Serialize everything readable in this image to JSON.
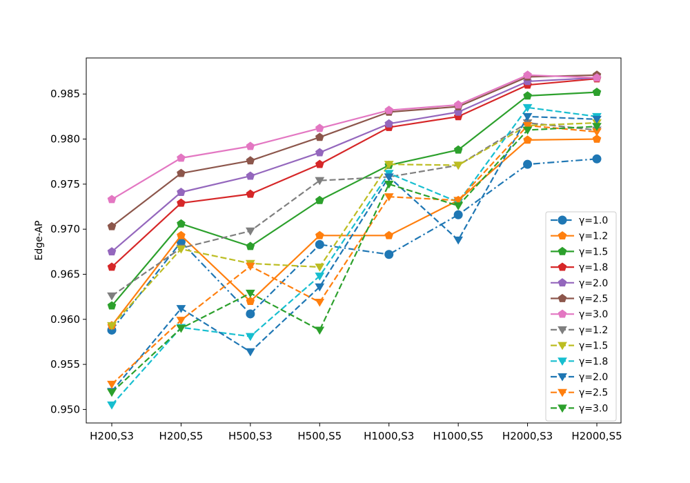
{
  "chart_data": {
    "type": "line",
    "categories": [
      "H200,S3",
      "H200,S5",
      "H500,S3",
      "H500,S5",
      "H1000,S3",
      "H1000,S5",
      "H2000,S3",
      "H2000,S5"
    ],
    "xlabel": "",
    "ylabel": "Edge-AP",
    "ylim": [
      0.9485,
      0.989
    ],
    "yticks": [
      0.95,
      0.955,
      0.96,
      0.965,
      0.97,
      0.975,
      0.98,
      0.985
    ],
    "ytick_labels": [
      "0.950",
      "0.955",
      "0.960",
      "0.965",
      "0.970",
      "0.975",
      "0.980",
      "0.985"
    ],
    "grid": false,
    "legend_position": "lower-right",
    "series": [
      {
        "name": "γ=1.0",
        "color": "#1f77b4",
        "linestyle": "dashdot",
        "marker": "circle",
        "values": [
          0.9588,
          0.9686,
          0.9606,
          0.9683,
          0.9672,
          0.9716,
          0.9772,
          0.9778
        ]
      },
      {
        "name": "γ=1.2",
        "color": "#ff7f0e",
        "linestyle": "solid",
        "marker": "pentagon",
        "values": [
          0.9593,
          0.9693,
          0.962,
          0.9693,
          0.9693,
          0.9732,
          0.9799,
          0.98
        ]
      },
      {
        "name": "γ=1.5",
        "color": "#2ca02c",
        "linestyle": "solid",
        "marker": "pentagon",
        "values": [
          0.9615,
          0.9706,
          0.9681,
          0.9732,
          0.9771,
          0.9788,
          0.9848,
          0.9852
        ]
      },
      {
        "name": "γ=1.8",
        "color": "#d62728",
        "linestyle": "solid",
        "marker": "pentagon",
        "values": [
          0.9658,
          0.9729,
          0.9739,
          0.9772,
          0.9813,
          0.9825,
          0.986,
          0.9867
        ]
      },
      {
        "name": "γ=2.0",
        "color": "#9467bd",
        "linestyle": "solid",
        "marker": "pentagon",
        "values": [
          0.9675,
          0.9741,
          0.9759,
          0.9785,
          0.9817,
          0.983,
          0.9864,
          0.9868
        ]
      },
      {
        "name": "γ=2.5",
        "color": "#8c564b",
        "linestyle": "solid",
        "marker": "pentagon",
        "values": [
          0.9703,
          0.9762,
          0.9776,
          0.9802,
          0.983,
          0.9836,
          0.9869,
          0.9871
        ]
      },
      {
        "name": "γ=3.0",
        "color": "#e377c2",
        "linestyle": "solid",
        "marker": "pentagon",
        "values": [
          0.9733,
          0.9779,
          0.9792,
          0.9812,
          0.9832,
          0.9838,
          0.9871,
          0.9868
        ]
      },
      {
        "name": "γ=1.2",
        "color": "#7f7f7f",
        "linestyle": "dashed",
        "marker": "triangle-down",
        "values": [
          0.9626,
          0.9679,
          0.9698,
          0.9754,
          0.9758,
          0.9771,
          0.9818,
          0.981
        ]
      },
      {
        "name": "γ=1.5",
        "color": "#bcbd22",
        "linestyle": "dashed",
        "marker": "triangle-down",
        "values": [
          0.9593,
          0.9678,
          0.9662,
          0.9658,
          0.9772,
          0.9771,
          0.9815,
          0.9818
        ]
      },
      {
        "name": "γ=1.8",
        "color": "#17becf",
        "linestyle": "dashed",
        "marker": "triangle-down",
        "values": [
          0.9505,
          0.9591,
          0.9581,
          0.9648,
          0.9762,
          0.973,
          0.9835,
          0.9825
        ]
      },
      {
        "name": "γ=2.0",
        "color": "#1f77b4",
        "linestyle": "dashed",
        "marker": "triangle-down",
        "values": [
          0.952,
          0.9612,
          0.9564,
          0.9636,
          0.9758,
          0.9688,
          0.9825,
          0.9822
        ]
      },
      {
        "name": "γ=2.5",
        "color": "#ff7f0e",
        "linestyle": "dashed",
        "marker": "triangle-down",
        "values": [
          0.9528,
          0.9599,
          0.9659,
          0.9619,
          0.9736,
          0.9732,
          0.9815,
          0.9808
        ]
      },
      {
        "name": "γ=3.0",
        "color": "#2ca02c",
        "linestyle": "dashed",
        "marker": "triangle-down",
        "values": [
          0.9519,
          0.959,
          0.9629,
          0.9588,
          0.975,
          0.9726,
          0.981,
          0.9814
        ]
      }
    ]
  }
}
